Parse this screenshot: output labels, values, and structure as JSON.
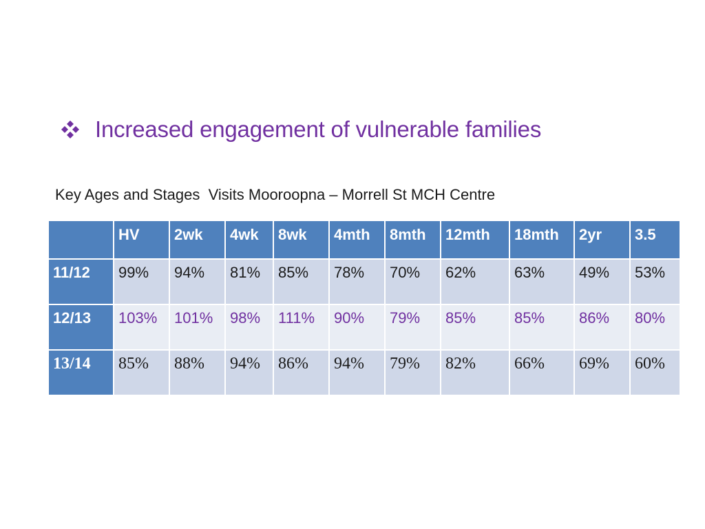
{
  "slide": {
    "bullet_text": "Increased engagement of vulnerable families",
    "bullet_icon": "four-diamond-bullet-icon",
    "subtitle": "Key Ages and Stages  Visits Mooroopna – Morrell St MCH Centre"
  },
  "colors": {
    "accent_purple": "#7030a0",
    "header_blue": "#4f81bd",
    "row_light": "#e9edf4",
    "row_mid": "#cfd7e8"
  },
  "table": {
    "corner": "",
    "columns": [
      "HV",
      "2wk",
      "4wk",
      "8wk",
      "4mth",
      "8mth",
      "12mth",
      "18mth",
      "2yr",
      "3.5"
    ],
    "rows": [
      {
        "label": "11/12",
        "values": [
          "99%",
          "94%",
          "81%",
          "85%",
          "78%",
          "70%",
          "62%",
          "63%",
          "49%",
          "53%"
        ]
      },
      {
        "label": "12/13",
        "values": [
          "103%",
          "101%",
          "98%",
          "111%",
          "90%",
          "79%",
          "85%",
          "85%",
          "86%",
          "80%"
        ]
      },
      {
        "label": "13/14",
        "values": [
          "85%",
          "88%",
          "94%",
          "86%",
          "94%",
          "79%",
          "82%",
          "66%",
          "69%",
          "60%"
        ]
      }
    ]
  }
}
